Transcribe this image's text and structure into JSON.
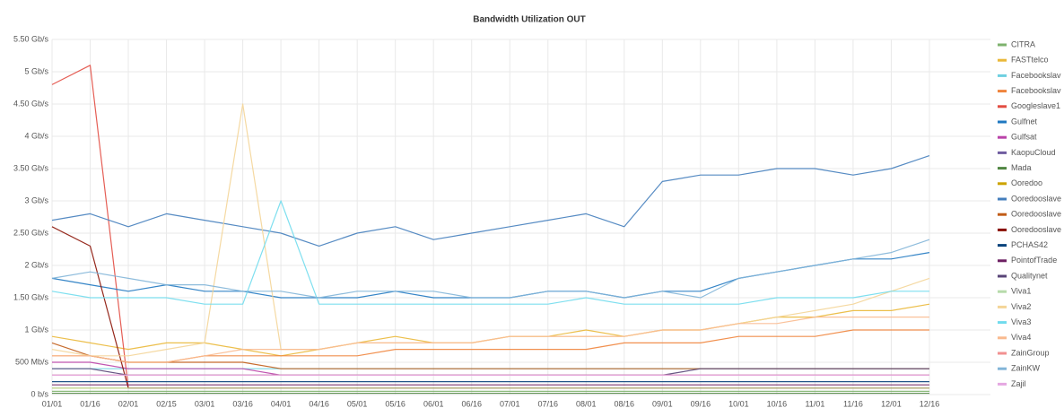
{
  "chart_data": {
    "type": "line",
    "title": "Bandwidth Utilization OUT",
    "categories": [
      "01/01",
      "01/16",
      "02/01",
      "02/15",
      "03/01",
      "03/16",
      "04/01",
      "04/16",
      "05/01",
      "05/16",
      "06/01",
      "06/16",
      "07/01",
      "07/16",
      "08/01",
      "08/16",
      "09/01",
      "09/16",
      "10/01",
      "10/16",
      "11/01",
      "11/16",
      "12/01",
      "12/16"
    ],
    "ylim": [
      0,
      5.5
    ],
    "yticks": [
      {
        "value": 0,
        "label": "0 b/s"
      },
      {
        "value": 0.5,
        "label": "500 Mb/s"
      },
      {
        "value": 1,
        "label": "1 Gb/s"
      },
      {
        "value": 1.5,
        "label": "1.50 Gb/s"
      },
      {
        "value": 2,
        "label": "2 Gb/s"
      },
      {
        "value": 2.5,
        "label": "2.50 Gb/s"
      },
      {
        "value": 3,
        "label": "3 Gb/s"
      },
      {
        "value": 3.5,
        "label": "3.50 Gb/s"
      },
      {
        "value": 4,
        "label": "4 Gb/s"
      },
      {
        "value": 4.5,
        "label": "4.50 Gb/s"
      },
      {
        "value": 5,
        "label": "5 Gb/s"
      },
      {
        "value": 5.5,
        "label": "5.50 Gb/s"
      }
    ],
    "grid": true,
    "legend": "right",
    "series": [
      {
        "name": "CITRA",
        "color": "#7EB26D",
        "values": [
          0.05,
          0.05,
          0.05,
          0.05,
          0.05,
          0.05,
          0.05,
          0.05,
          0.05,
          0.05,
          0.05,
          0.05,
          0.05,
          0.05,
          0.05,
          0.05,
          0.05,
          0.05,
          0.05,
          0.05,
          0.05,
          0.05,
          0.05,
          0.05
        ]
      },
      {
        "name": "FASTtelco",
        "color": "#EAB839",
        "values": [
          0.9,
          0.8,
          0.7,
          0.8,
          0.8,
          0.7,
          0.6,
          0.7,
          0.8,
          0.9,
          0.8,
          0.8,
          0.9,
          0.9,
          1.0,
          0.9,
          1.0,
          1.0,
          1.1,
          1.2,
          1.2,
          1.3,
          1.3,
          1.4
        ]
      },
      {
        "name": "Facebookslav",
        "color": "#6ED0E0",
        "values": [
          0.4,
          0.4,
          0.4,
          0.4,
          0.4,
          0.4,
          0.4,
          0.4,
          0.4,
          0.4,
          0.4,
          0.4,
          0.4,
          0.4,
          0.4,
          0.4,
          0.4,
          0.4,
          0.4,
          0.4,
          0.4,
          0.4,
          0.4,
          0.4
        ]
      },
      {
        "name": "Facebookslav",
        "color": "#EF843C",
        "values": [
          0.6,
          0.6,
          0.5,
          0.5,
          0.6,
          0.6,
          0.6,
          0.6,
          0.6,
          0.7,
          0.7,
          0.7,
          0.7,
          0.7,
          0.7,
          0.8,
          0.8,
          0.8,
          0.9,
          0.9,
          0.9,
          1.0,
          1.0,
          1.0
        ]
      },
      {
        "name": "Googleslave1",
        "color": "#E24D42",
        "values": [
          4.8,
          5.1,
          0.1,
          0.1,
          0.1,
          0.1,
          0.1,
          0.1,
          0.1,
          0.1,
          0.1,
          0.1,
          0.1,
          0.1,
          0.1,
          0.1,
          0.1,
          0.1,
          0.1,
          0.1,
          0.1,
          0.1,
          0.1,
          0.1
        ]
      },
      {
        "name": "Gulfnet",
        "color": "#1F78C1",
        "values": [
          1.8,
          1.7,
          1.6,
          1.7,
          1.6,
          1.6,
          1.5,
          1.5,
          1.5,
          1.6,
          1.5,
          1.5,
          1.5,
          1.6,
          1.6,
          1.5,
          1.6,
          1.6,
          1.8,
          1.9,
          2.0,
          2.1,
          2.1,
          2.2
        ]
      },
      {
        "name": "Gulfsat",
        "color": "#BA43A9",
        "values": [
          0.5,
          0.5,
          0.4,
          0.4,
          0.4,
          0.4,
          0.3,
          0.3,
          0.3,
          0.3,
          0.3,
          0.3,
          0.3,
          0.3,
          0.3,
          0.3,
          0.3,
          0.3,
          0.3,
          0.3,
          0.3,
          0.3,
          0.3,
          0.3
        ]
      },
      {
        "name": "KaopuCloud",
        "color": "#705DA0",
        "values": [
          0.3,
          0.3,
          0.3,
          0.3,
          0.3,
          0.3,
          0.3,
          0.3,
          0.3,
          0.3,
          0.3,
          0.3,
          0.3,
          0.3,
          0.3,
          0.3,
          0.3,
          0.3,
          0.3,
          0.3,
          0.3,
          0.3,
          0.3,
          0.3
        ]
      },
      {
        "name": "Mada",
        "color": "#508642",
        "values": [
          0.02,
          0.02,
          0.02,
          0.02,
          0.02,
          0.02,
          0.02,
          0.02,
          0.02,
          0.02,
          0.02,
          0.02,
          0.02,
          0.02,
          0.02,
          0.02,
          0.02,
          0.02,
          0.02,
          0.02,
          0.02,
          0.02,
          0.02,
          0.02
        ]
      },
      {
        "name": "Ooredoo",
        "color": "#CCA300",
        "values": [
          0.1,
          0.1,
          0.1,
          0.1,
          0.1,
          0.1,
          0.1,
          0.1,
          0.1,
          0.1,
          0.1,
          0.1,
          0.1,
          0.1,
          0.1,
          0.1,
          0.1,
          0.1,
          0.1,
          0.1,
          0.1,
          0.1,
          0.1,
          0.1
        ]
      },
      {
        "name": "Ooredooslave",
        "color": "#447EBC",
        "values": [
          2.7,
          2.8,
          2.6,
          2.8,
          2.7,
          2.6,
          2.5,
          2.3,
          2.5,
          2.6,
          2.4,
          2.5,
          2.6,
          2.7,
          2.8,
          2.6,
          3.3,
          3.4,
          3.4,
          3.5,
          3.5,
          3.4,
          3.5,
          3.7
        ]
      },
      {
        "name": "Ooredooslave",
        "color": "#C15C17",
        "values": [
          0.8,
          0.6,
          0.5,
          0.5,
          0.5,
          0.5,
          0.4,
          0.4,
          0.4,
          0.4,
          0.4,
          0.4,
          0.4,
          0.4,
          0.4,
          0.4,
          0.4,
          0.4,
          0.4,
          0.4,
          0.4,
          0.4,
          0.4,
          0.4
        ]
      },
      {
        "name": "Ooredooslave",
        "color": "#890F02",
        "values": [
          2.6,
          2.3,
          0.1,
          0.1,
          0.1,
          0.1,
          0.1,
          0.1,
          0.1,
          0.1,
          0.1,
          0.1,
          0.1,
          0.1,
          0.1,
          0.1,
          0.1,
          0.1,
          0.1,
          0.1,
          0.1,
          0.1,
          0.1,
          0.1
        ]
      },
      {
        "name": "PCHAS42",
        "color": "#0A437C",
        "values": [
          0.2,
          0.2,
          0.2,
          0.2,
          0.2,
          0.2,
          0.2,
          0.2,
          0.2,
          0.2,
          0.2,
          0.2,
          0.2,
          0.2,
          0.2,
          0.2,
          0.2,
          0.2,
          0.2,
          0.2,
          0.2,
          0.2,
          0.2,
          0.2
        ]
      },
      {
        "name": "PointofTrade",
        "color": "#6D1F62",
        "values": [
          0.15,
          0.15,
          0.15,
          0.15,
          0.15,
          0.15,
          0.15,
          0.15,
          0.15,
          0.15,
          0.15,
          0.15,
          0.15,
          0.15,
          0.15,
          0.15,
          0.15,
          0.15,
          0.15,
          0.15,
          0.15,
          0.15,
          0.15,
          0.15
        ]
      },
      {
        "name": "Qualitynet",
        "color": "#584477",
        "values": [
          0.4,
          0.4,
          0.3,
          0.3,
          0.3,
          0.3,
          0.3,
          0.3,
          0.3,
          0.3,
          0.3,
          0.3,
          0.3,
          0.3,
          0.3,
          0.3,
          0.3,
          0.4,
          0.4,
          0.4,
          0.4,
          0.4,
          0.4,
          0.4
        ]
      },
      {
        "name": "Viva1",
        "color": "#B7DBAB",
        "values": [
          0.1,
          0.1,
          0.1,
          0.1,
          0.1,
          0.1,
          0.1,
          0.1,
          0.1,
          0.1,
          0.1,
          0.1,
          0.1,
          0.1,
          0.1,
          0.1,
          0.1,
          0.1,
          0.1,
          0.1,
          0.1,
          0.1,
          0.1,
          0.1
        ]
      },
      {
        "name": "Viva2",
        "color": "#F4D598",
        "values": [
          0.7,
          0.6,
          0.6,
          0.7,
          0.8,
          4.5,
          0.7,
          0.7,
          0.8,
          0.8,
          0.8,
          0.8,
          0.9,
          0.9,
          0.9,
          0.9,
          1.0,
          1.0,
          1.1,
          1.2,
          1.3,
          1.4,
          1.6,
          1.8
        ]
      },
      {
        "name": "Viva3",
        "color": "#70DBED",
        "values": [
          1.6,
          1.5,
          1.5,
          1.5,
          1.4,
          1.4,
          3.0,
          1.4,
          1.4,
          1.4,
          1.4,
          1.4,
          1.4,
          1.4,
          1.5,
          1.4,
          1.4,
          1.4,
          1.4,
          1.5,
          1.5,
          1.5,
          1.6,
          1.6
        ]
      },
      {
        "name": "Viva4",
        "color": "#F9BA8F",
        "values": [
          0.6,
          0.6,
          0.5,
          0.5,
          0.6,
          0.7,
          0.7,
          0.7,
          0.8,
          0.8,
          0.8,
          0.8,
          0.9,
          0.9,
          0.9,
          0.9,
          1.0,
          1.0,
          1.1,
          1.1,
          1.2,
          1.2,
          1.2,
          1.2
        ]
      },
      {
        "name": "ZainGroup",
        "color": "#F29191",
        "values": [
          0.3,
          0.3,
          0.3,
          0.3,
          0.3,
          0.3,
          0.3,
          0.3,
          0.3,
          0.3,
          0.3,
          0.3,
          0.3,
          0.3,
          0.3,
          0.3,
          0.3,
          0.3,
          0.3,
          0.3,
          0.3,
          0.3,
          0.3,
          0.3
        ]
      },
      {
        "name": "ZainKW",
        "color": "#82B5D8",
        "values": [
          1.8,
          1.9,
          1.8,
          1.7,
          1.7,
          1.6,
          1.6,
          1.5,
          1.6,
          1.6,
          1.6,
          1.5,
          1.5,
          1.6,
          1.6,
          1.5,
          1.6,
          1.5,
          1.8,
          1.9,
          2.0,
          2.1,
          2.2,
          2.4
        ]
      },
      {
        "name": "Zajil",
        "color": "#E5A8E2",
        "values": [
          0.3,
          0.3,
          0.3,
          0.3,
          0.3,
          0.3,
          0.3,
          0.3,
          0.3,
          0.3,
          0.3,
          0.3,
          0.3,
          0.3,
          0.3,
          0.3,
          0.3,
          0.3,
          0.3,
          0.3,
          0.3,
          0.3,
          0.3,
          0.3
        ]
      }
    ]
  }
}
